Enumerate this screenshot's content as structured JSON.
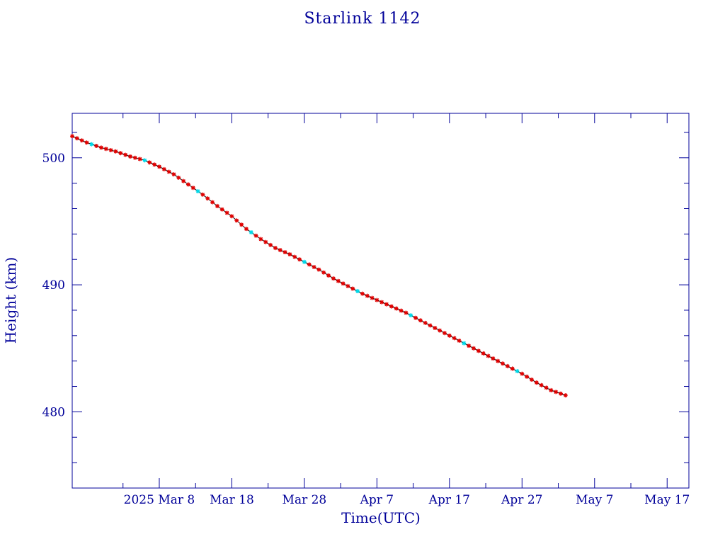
{
  "chart_data": {
    "type": "scatter",
    "title": "Starlink 1142",
    "xlabel": "Time(UTC)",
    "ylabel": "Height (km)",
    "x_axis": {
      "type": "date",
      "range": [
        "2025-02-24",
        "2025-05-20"
      ]
    },
    "ylim": [
      474,
      503.5
    ],
    "x_tick_labels": [
      "2025 Mar  8",
      "Mar 18",
      "Mar 28",
      "Apr  7",
      "Apr 17",
      "Apr 27",
      "May  7",
      "May 17"
    ],
    "x_tick_dates": [
      "2025-03-08",
      "2025-03-18",
      "2025-03-28",
      "2025-04-07",
      "2025-04-17",
      "2025-04-27",
      "2025-05-07",
      "2025-05-17"
    ],
    "y_tick_labels": [
      "480",
      "490",
      "500"
    ],
    "y_ticks": [
      480,
      490,
      500
    ],
    "grid": false,
    "colors": {
      "axes": "#000099",
      "points": "#e00000",
      "highlight": "#00d8e8",
      "line": "#000000"
    },
    "series": [
      {
        "x": [
          "2025-02-24",
          "2025-02-26",
          "2025-02-28",
          "2025-03-02",
          "2025-03-04",
          "2025-03-06",
          "2025-03-08",
          "2025-03-10",
          "2025-03-12",
          "2025-03-14",
          "2025-03-16",
          "2025-03-18",
          "2025-03-20",
          "2025-03-22",
          "2025-03-24",
          "2025-03-26",
          "2025-03-28",
          "2025-03-30",
          "2025-04-01",
          "2025-04-03",
          "2025-04-05",
          "2025-04-07",
          "2025-04-09",
          "2025-04-11",
          "2025-04-13",
          "2025-04-15",
          "2025-04-17",
          "2025-04-19",
          "2025-04-21",
          "2025-04-23",
          "2025-04-25",
          "2025-04-27",
          "2025-04-29",
          "2025-05-01",
          "2025-05-03"
        ],
        "values": [
          501.7,
          501.2,
          500.8,
          500.5,
          500.1,
          499.8,
          499.3,
          498.7,
          497.9,
          497.1,
          496.2,
          495.4,
          494.4,
          493.6,
          492.9,
          492.4,
          491.8,
          491.2,
          490.5,
          489.9,
          489.3,
          488.8,
          488.3,
          487.8,
          487.2,
          486.6,
          486.0,
          485.4,
          484.8,
          484.2,
          483.6,
          483.0,
          482.3,
          481.7,
          481.3
        ]
      }
    ]
  }
}
